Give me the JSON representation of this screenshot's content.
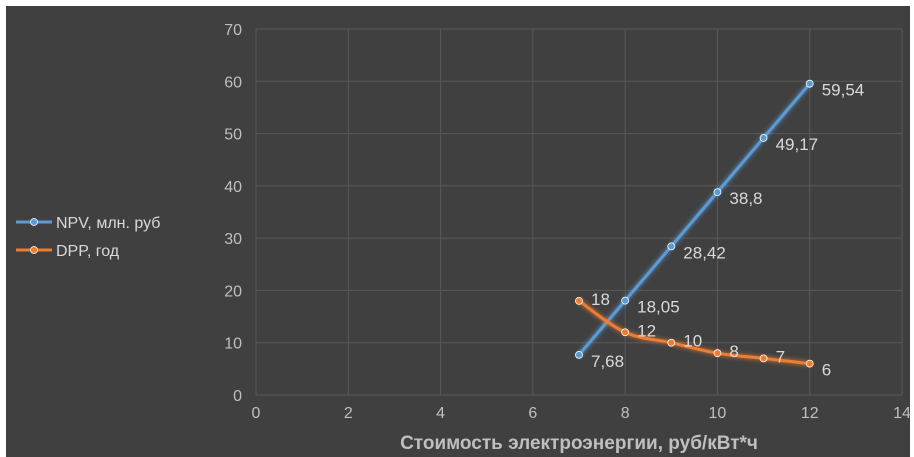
{
  "colors": {
    "background": "#404040",
    "grid": "#595959",
    "npv": "#5b9bd5",
    "dpp": "#ed7d31"
  },
  "chart_data": {
    "type": "line",
    "title": "",
    "xlabel": "Стоимость электроэнергии, руб/кВт*ч",
    "ylabel": "",
    "xlim": [
      0,
      14
    ],
    "ylim": [
      0,
      70
    ],
    "xticks": [
      0,
      2,
      4,
      6,
      8,
      10,
      12,
      14
    ],
    "yticks": [
      0,
      10,
      20,
      30,
      40,
      50,
      60,
      70
    ],
    "grid": true,
    "legend_position": "left",
    "series": [
      {
        "name": "NPV, млн. руб",
        "color": "#5b9bd5",
        "x": [
          7,
          8,
          9,
          10,
          11,
          12
        ],
        "y": [
          7.68,
          18.05,
          28.42,
          38.8,
          49.17,
          59.54
        ],
        "labels": [
          "7,68",
          "18,05",
          "28,42",
          "38,8",
          "49,17",
          "59,54"
        ]
      },
      {
        "name": "DPP, год",
        "color": "#ed7d31",
        "x": [
          7,
          8,
          9,
          10,
          11,
          12
        ],
        "y": [
          18,
          12,
          10,
          8,
          7,
          6
        ],
        "labels": [
          "18",
          "12",
          "10",
          "8",
          "7",
          "6"
        ]
      }
    ]
  }
}
